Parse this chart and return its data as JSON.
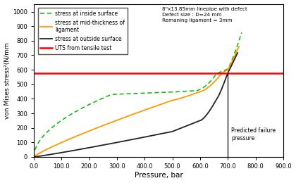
{
  "xlabel": "Pressure, bar",
  "ylabel": "von Mises stress²(N/mm",
  "xlim": [
    0.0,
    900.0
  ],
  "ylim": [
    0,
    1050
  ],
  "xticks": [
    0.0,
    100.0,
    200.0,
    300.0,
    400.0,
    500.0,
    600.0,
    700.0,
    800.0,
    900.0
  ],
  "yticks": [
    0,
    100,
    200,
    300,
    400,
    500,
    600,
    700,
    800,
    900,
    1000
  ],
  "UTS_value": 578,
  "vertical_line_x": 700,
  "annotation_text": "8\"x13.85mm linepipe with defect\nDefect size : D=24 mm\nRemaning ligament = 3mm",
  "predicted_label": "Predicted failure\npressure",
  "legend_labels": [
    "stress at inside surface",
    "stress at mid-thickness of\nligament",
    "stress at outside surface",
    "UTS from tensile test"
  ],
  "line_colors": [
    "#00bb00",
    "#ff9900",
    "#222222",
    "#ff0000"
  ],
  "background_color": "#ffffff"
}
